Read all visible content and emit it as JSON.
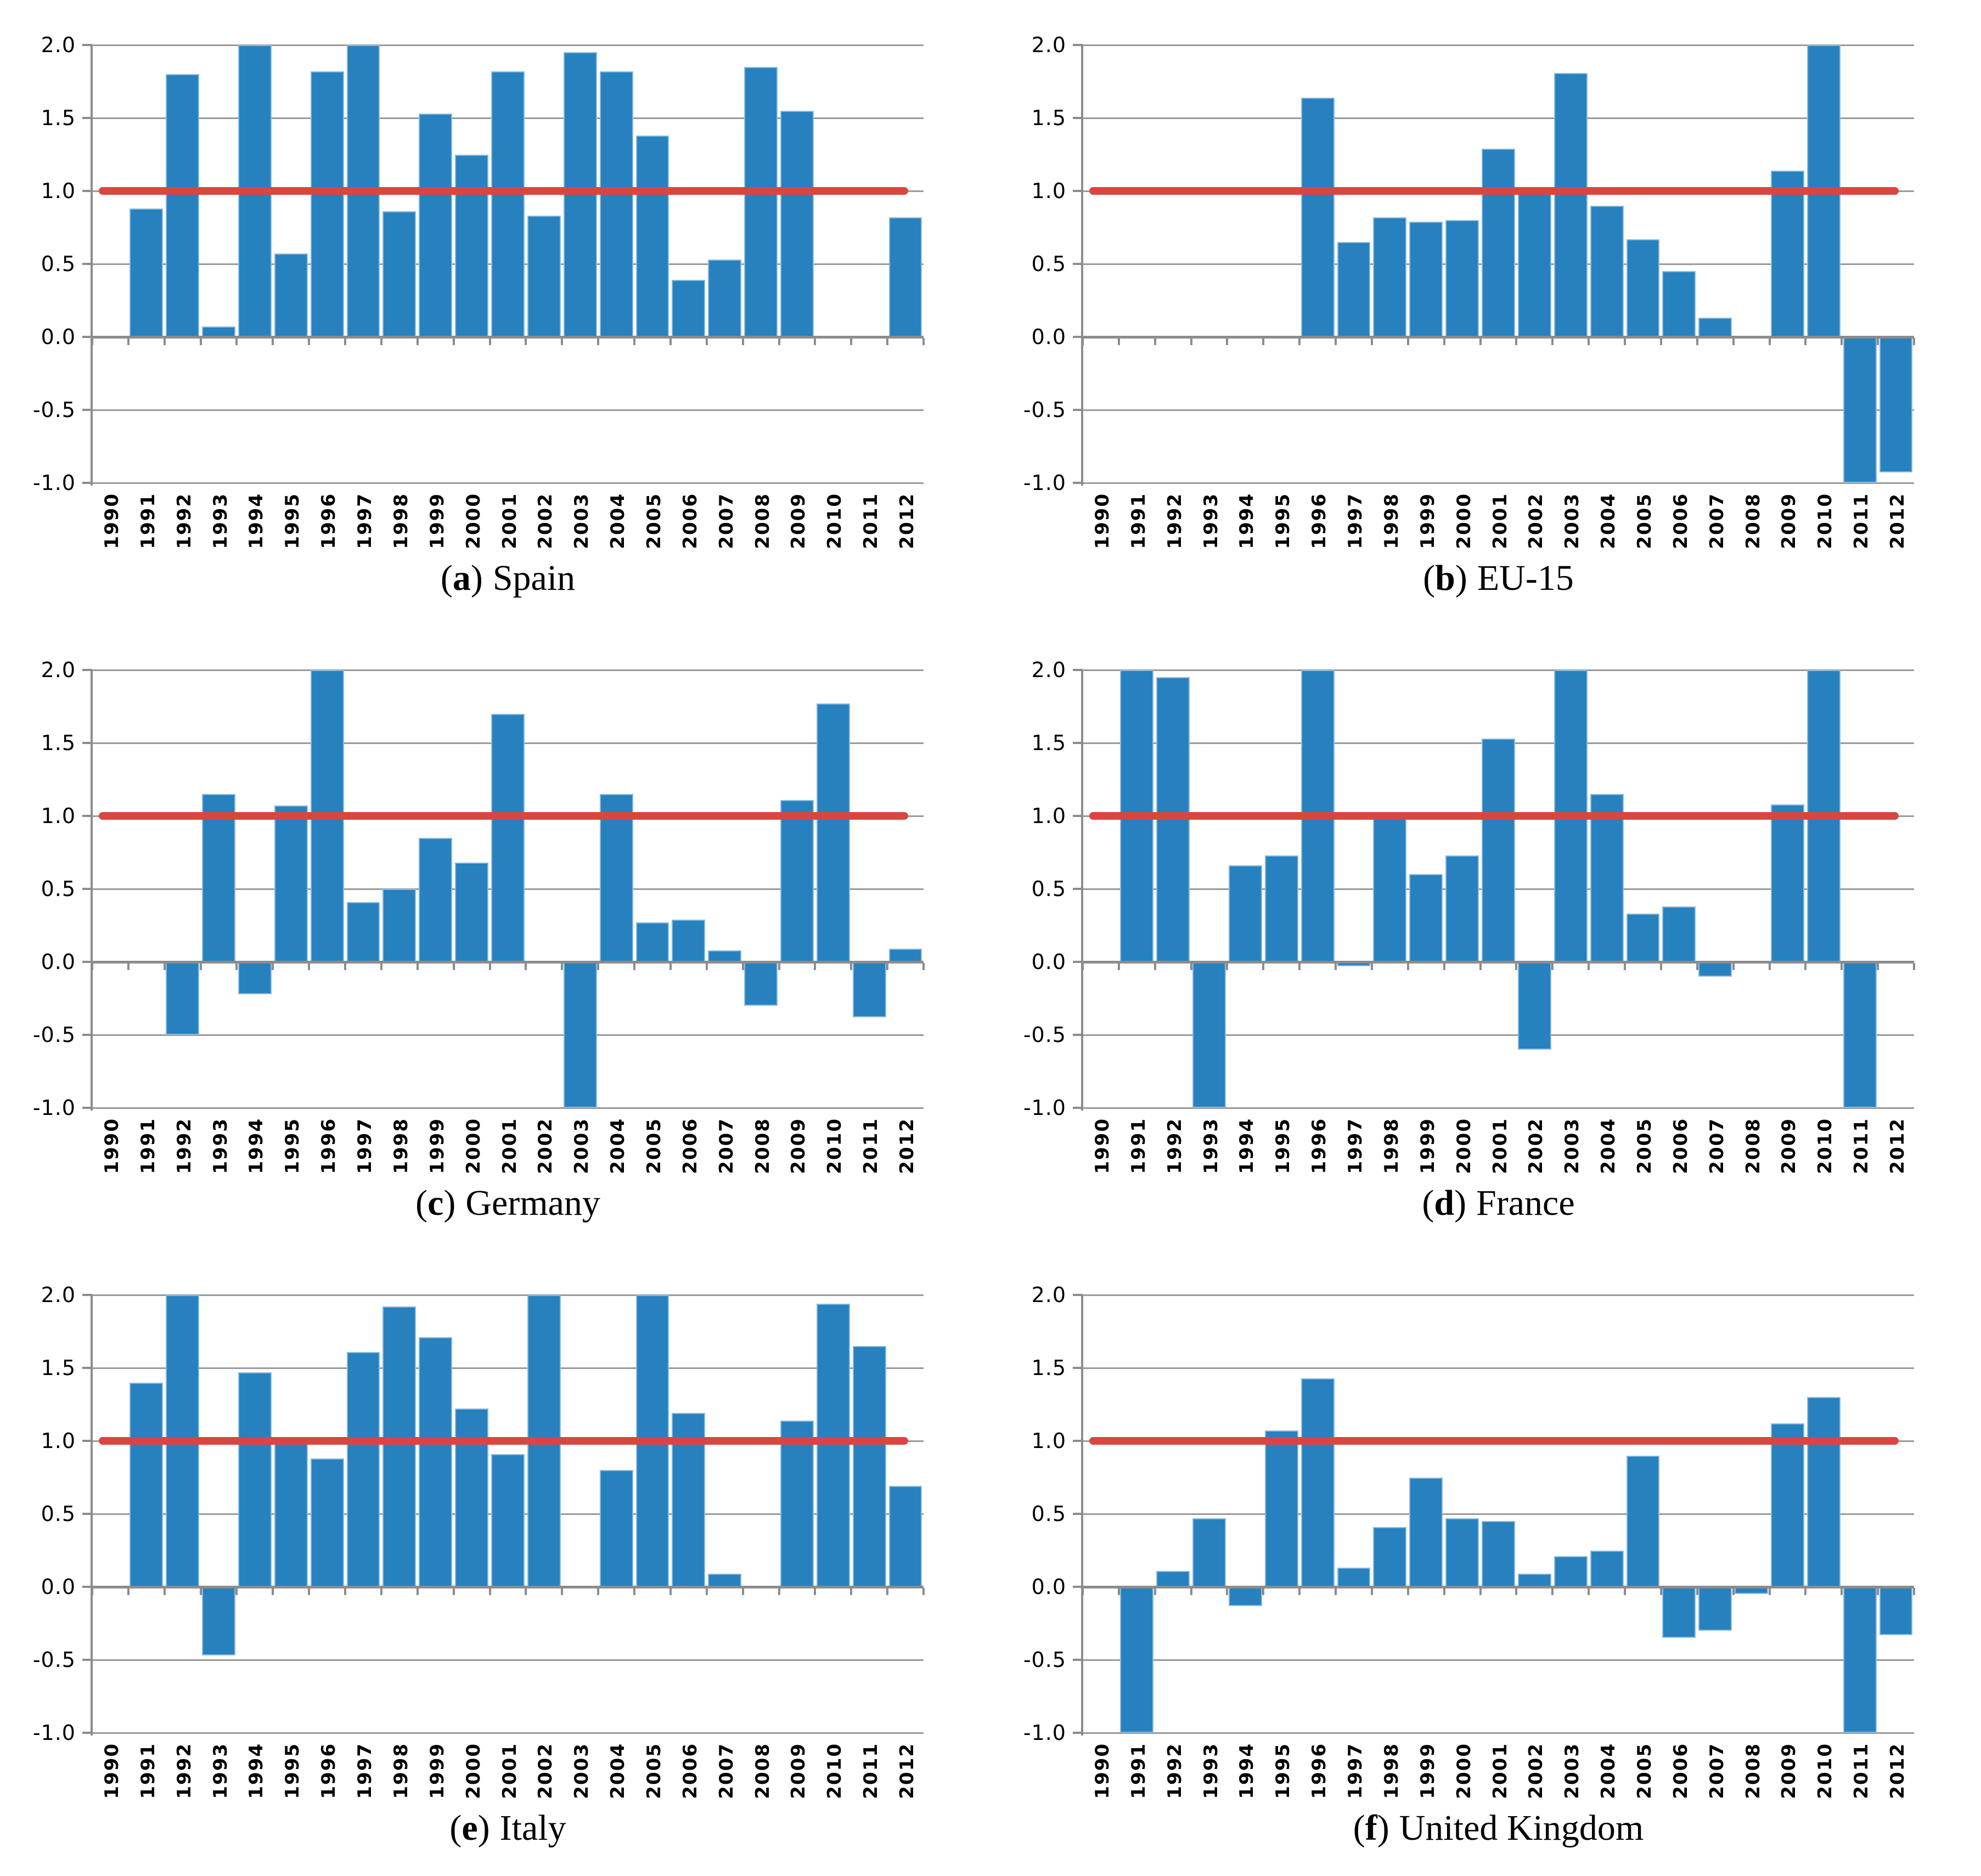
{
  "figure": {
    "background": "#ffffff",
    "paren_open": "(",
    "paren_close": ")",
    "colors": {
      "bar": "#2781bf",
      "ref_line": "#db4540",
      "gridline": "#9a9a9a",
      "axis": "#8c8c8c",
      "text": "#000000"
    }
  },
  "chart_data": [
    {
      "type": "bar",
      "panel_letter": "a",
      "title": "Spain",
      "categories": [
        "1990",
        "1991",
        "1992",
        "1993",
        "1994",
        "1995",
        "1996",
        "1997",
        "1998",
        "1999",
        "2000",
        "2001",
        "2002",
        "2003",
        "2004",
        "2005",
        "2006",
        "2007",
        "2008",
        "2009",
        "2010",
        "2011",
        "2012"
      ],
      "values": [
        null,
        0.88,
        1.8,
        0.07,
        2.0,
        0.57,
        1.82,
        2.0,
        0.86,
        1.53,
        1.25,
        1.82,
        0.83,
        1.95,
        1.82,
        1.38,
        0.39,
        0.53,
        1.85,
        1.55,
        null,
        null,
        0.82
      ],
      "ref_line": 1.0,
      "ylim": [
        -1.0,
        2.0
      ],
      "yticks": [
        "2.0",
        "1.5",
        "1.0",
        "0.5",
        "0.0",
        "-0.5",
        "-1.0"
      ],
      "grid": true
    },
    {
      "type": "bar",
      "panel_letter": "b",
      "title": "EU-15",
      "categories": [
        "1990",
        "1991",
        "1992",
        "1993",
        "1994",
        "1995",
        "1996",
        "1997",
        "1998",
        "1999",
        "2000",
        "2001",
        "2002",
        "2003",
        "2004",
        "2005",
        "2006",
        "2007",
        "2008",
        "2009",
        "2010",
        "2011",
        "2012"
      ],
      "values": [
        null,
        null,
        null,
        null,
        null,
        null,
        1.64,
        0.65,
        0.82,
        0.79,
        0.8,
        1.29,
        1.02,
        1.81,
        0.9,
        0.67,
        0.45,
        0.13,
        null,
        1.14,
        2.0,
        -1.0,
        -0.93
      ],
      "ref_line": 1.0,
      "ylim": [
        -1.0,
        2.0
      ],
      "yticks": [
        "2.0",
        "1.5",
        "1.0",
        "0.5",
        "0.0",
        "-0.5",
        "-1.0"
      ],
      "grid": true
    },
    {
      "type": "bar",
      "panel_letter": "c",
      "title": "Germany",
      "categories": [
        "1990",
        "1991",
        "1992",
        "1993",
        "1994",
        "1995",
        "1996",
        "1997",
        "1998",
        "1999",
        "2000",
        "2001",
        "2002",
        "2003",
        "2004",
        "2005",
        "2006",
        "2007",
        "2008",
        "2009",
        "2010",
        "2011",
        "2012"
      ],
      "values": [
        null,
        null,
        -0.5,
        1.15,
        -0.22,
        1.07,
        2.0,
        0.41,
        0.5,
        0.85,
        0.68,
        1.7,
        null,
        -1.0,
        1.15,
        0.27,
        0.29,
        0.08,
        -0.3,
        1.11,
        1.77,
        -0.38,
        0.09
      ],
      "ref_line": 1.0,
      "ylim": [
        -1.0,
        2.0
      ],
      "yticks": [
        "2.0",
        "1.5",
        "1.0",
        "0.5",
        "0.0",
        "-0.5",
        "-1.0"
      ],
      "grid": true
    },
    {
      "type": "bar",
      "panel_letter": "d",
      "title": "France",
      "categories": [
        "1990",
        "1991",
        "1992",
        "1993",
        "1994",
        "1995",
        "1996",
        "1997",
        "1998",
        "1999",
        "2000",
        "2001",
        "2002",
        "2003",
        "2004",
        "2005",
        "2006",
        "2007",
        "2008",
        "2009",
        "2010",
        "2011",
        "2012"
      ],
      "values": [
        null,
        2.0,
        1.95,
        -1.0,
        0.66,
        0.73,
        2.0,
        -0.03,
        0.98,
        0.6,
        0.73,
        1.53,
        -0.6,
        2.0,
        1.15,
        0.33,
        0.38,
        -0.1,
        null,
        1.08,
        2.0,
        -1.0,
        null
      ],
      "ref_line": 1.0,
      "ylim": [
        -1.0,
        2.0
      ],
      "yticks": [
        "2.0",
        "1.5",
        "1.0",
        "0.5",
        "0.0",
        "-0.5",
        "-1.0"
      ],
      "grid": true
    },
    {
      "type": "bar",
      "panel_letter": "e",
      "title": "Italy",
      "categories": [
        "1990",
        "1991",
        "1992",
        "1993",
        "1994",
        "1995",
        "1996",
        "1997",
        "1998",
        "1999",
        "2000",
        "2001",
        "2002",
        "2003",
        "2004",
        "2005",
        "2006",
        "2007",
        "2008",
        "2009",
        "2010",
        "2011",
        "2012"
      ],
      "values": [
        null,
        1.4,
        2.0,
        -0.47,
        1.47,
        1.0,
        0.88,
        1.61,
        1.92,
        1.71,
        1.22,
        0.91,
        2.0,
        null,
        0.8,
        2.0,
        1.19,
        0.09,
        null,
        1.14,
        1.94,
        1.65,
        0.69
      ],
      "ref_line": 1.0,
      "ylim": [
        -1.0,
        2.0
      ],
      "yticks": [
        "2.0",
        "1.5",
        "1.0",
        "0.5",
        "0.0",
        "-0.5",
        "-1.0"
      ],
      "grid": true
    },
    {
      "type": "bar",
      "panel_letter": "f",
      "title": "United Kingdom",
      "categories": [
        "1990",
        "1991",
        "1992",
        "1993",
        "1994",
        "1995",
        "1996",
        "1997",
        "1998",
        "1999",
        "2000",
        "2001",
        "2002",
        "2003",
        "2004",
        "2005",
        "2006",
        "2007",
        "2008",
        "2009",
        "2010",
        "2011",
        "2012"
      ],
      "values": [
        null,
        -1.0,
        0.11,
        0.47,
        -0.13,
        1.07,
        1.43,
        0.13,
        0.41,
        0.75,
        0.47,
        0.45,
        0.09,
        0.21,
        0.25,
        0.9,
        -0.35,
        -0.3,
        -0.05,
        1.12,
        1.3,
        -1.0,
        -0.33
      ],
      "ref_line": 1.0,
      "ylim": [
        -1.0,
        2.0
      ],
      "yticks": [
        "2.0",
        "1.5",
        "1.0",
        "0.5",
        "0.0",
        "-0.5",
        "-1.0"
      ],
      "grid": true
    }
  ]
}
